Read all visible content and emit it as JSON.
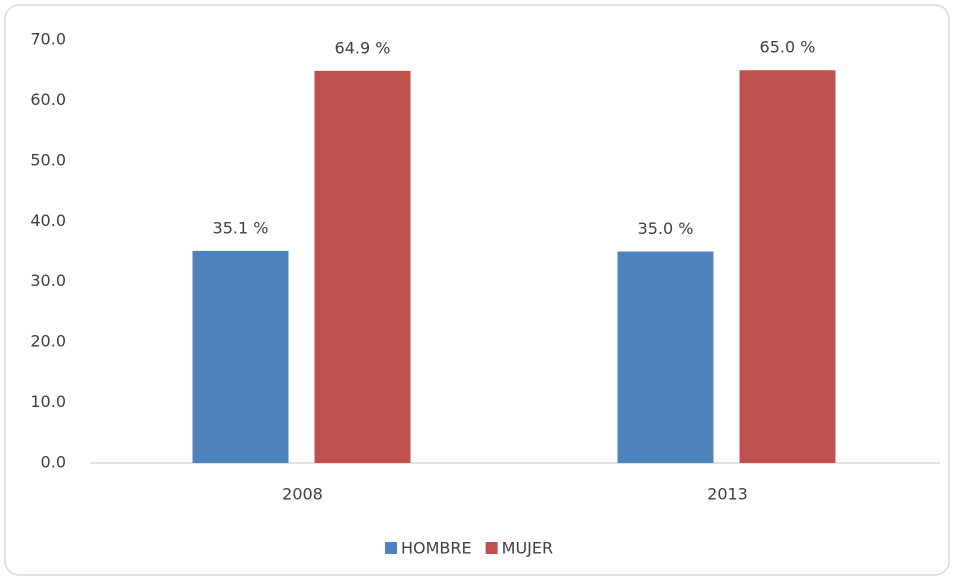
{
  "chart_data": {
    "type": "bar",
    "categories": [
      "2008",
      "2013"
    ],
    "series": [
      {
        "name": "HOMBRE",
        "color": "#4f81bd",
        "values": [
          35.1,
          35.0
        ],
        "value_labels": [
          "35.1 %",
          "35.0 %"
        ]
      },
      {
        "name": "MUJER",
        "color": "#c0504d",
        "values": [
          64.9,
          65.0
        ],
        "value_labels": [
          "64.9 %",
          "65.0 %"
        ]
      }
    ],
    "ylim": [
      0,
      70
    ],
    "yticks": [
      {
        "value": 0,
        "label": "0.0"
      },
      {
        "value": 10,
        "label": "10.0"
      },
      {
        "value": 20,
        "label": "20.0"
      },
      {
        "value": 30,
        "label": "30.0"
      },
      {
        "value": 40,
        "label": "40.0"
      },
      {
        "value": 50,
        "label": "50.0"
      },
      {
        "value": 60,
        "label": "60.0"
      },
      {
        "value": 70,
        "label": "70.0"
      }
    ],
    "grid": false,
    "legend": "bottom"
  }
}
